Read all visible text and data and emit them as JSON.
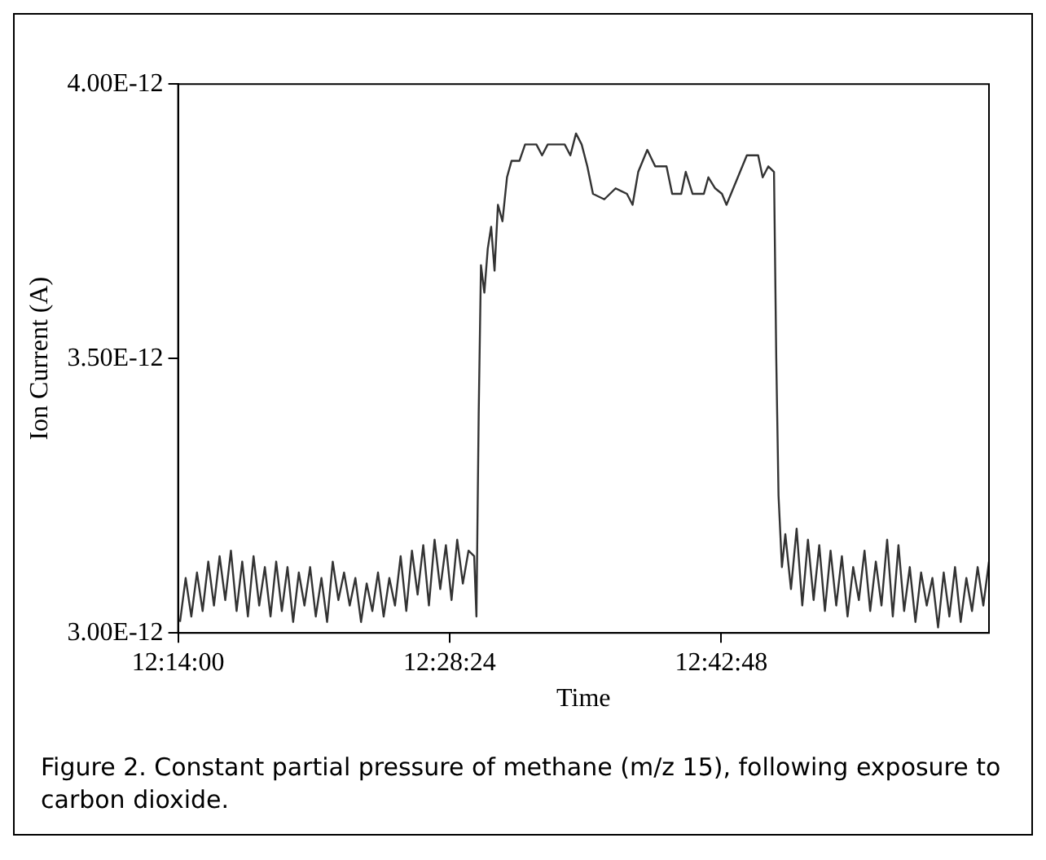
{
  "chart_data": {
    "type": "line",
    "xlabel": "Time",
    "ylabel": "Ion Current (A)",
    "annotations": [
      "Figure 2.  Constant partial pressure of methane (m/z 15), following exposure to carbon dioxide."
    ],
    "xlim": [
      12.2333,
      12.95
    ],
    "xticks": [
      {
        "value": 12.2333,
        "label": "12:14:00"
      },
      {
        "value": 12.4733,
        "label": "12:28:24"
      },
      {
        "value": 12.7133,
        "label": "12:42:48"
      }
    ],
    "ylim": [
      3e-12,
      4e-12
    ],
    "yticks": [
      {
        "value": 3e-12,
        "label": "3.00E-12"
      },
      {
        "value": 3.5e-12,
        "label": "3.50E-12"
      },
      {
        "value": 4e-12,
        "label": "4.00E-12"
      }
    ],
    "grid": false,
    "legend": false,
    "marker": "none",
    "line_style": "solid",
    "series": [
      {
        "color": "#333333",
        "x": [
          12.235,
          12.24,
          12.245,
          12.25,
          12.255,
          12.26,
          12.265,
          12.27,
          12.275,
          12.28,
          12.285,
          12.29,
          12.295,
          12.3,
          12.305,
          12.31,
          12.315,
          12.32,
          12.325,
          12.33,
          12.335,
          12.34,
          12.345,
          12.35,
          12.355,
          12.36,
          12.365,
          12.37,
          12.375,
          12.38,
          12.385,
          12.39,
          12.395,
          12.4,
          12.405,
          12.41,
          12.415,
          12.42,
          12.425,
          12.43,
          12.435,
          12.44,
          12.445,
          12.45,
          12.455,
          12.46,
          12.465,
          12.47,
          12.475,
          12.48,
          12.485,
          12.49,
          12.495,
          12.497,
          12.499,
          12.501,
          12.504,
          12.507,
          12.51,
          12.513,
          12.516,
          12.52,
          12.524,
          12.528,
          12.535,
          12.54,
          12.55,
          12.555,
          12.56,
          12.575,
          12.58,
          12.585,
          12.59,
          12.595,
          12.6,
          12.61,
          12.62,
          12.63,
          12.635,
          12.64,
          12.648,
          12.655,
          12.665,
          12.67,
          12.678,
          12.682,
          12.688,
          12.698,
          12.702,
          12.708,
          12.714,
          12.718,
          12.722,
          12.73,
          12.736,
          12.746,
          12.75,
          12.755,
          12.76,
          12.762,
          12.764,
          12.767,
          12.77,
          12.775,
          12.78,
          12.785,
          12.79,
          12.795,
          12.8,
          12.805,
          12.81,
          12.815,
          12.82,
          12.825,
          12.83,
          12.835,
          12.84,
          12.845,
          12.85,
          12.855,
          12.86,
          12.865,
          12.87,
          12.875,
          12.88,
          12.885,
          12.89,
          12.895,
          12.9,
          12.905,
          12.91,
          12.915,
          12.92,
          12.925,
          12.93,
          12.935,
          12.94,
          12.945,
          12.95
        ],
        "values": [
          3.02e-12,
          3.1e-12,
          3.03e-12,
          3.11e-12,
          3.04e-12,
          3.13e-12,
          3.05e-12,
          3.14e-12,
          3.06e-12,
          3.15e-12,
          3.04e-12,
          3.13e-12,
          3.03e-12,
          3.14e-12,
          3.05e-12,
          3.12e-12,
          3.03e-12,
          3.13e-12,
          3.04e-12,
          3.12e-12,
          3.02e-12,
          3.11e-12,
          3.05e-12,
          3.12e-12,
          3.03e-12,
          3.1e-12,
          3.02e-12,
          3.13e-12,
          3.06e-12,
          3.11e-12,
          3.05e-12,
          3.1e-12,
          3.02e-12,
          3.09e-12,
          3.04e-12,
          3.11e-12,
          3.03e-12,
          3.1e-12,
          3.05e-12,
          3.14e-12,
          3.04e-12,
          3.15e-12,
          3.07e-12,
          3.16e-12,
          3.05e-12,
          3.17e-12,
          3.08e-12,
          3.16e-12,
          3.06e-12,
          3.17e-12,
          3.09e-12,
          3.15e-12,
          3.14e-12,
          3.03e-12,
          3.4e-12,
          3.67e-12,
          3.62e-12,
          3.7e-12,
          3.74e-12,
          3.66e-12,
          3.78e-12,
          3.75e-12,
          3.83e-12,
          3.86e-12,
          3.86e-12,
          3.89e-12,
          3.89e-12,
          3.87e-12,
          3.89e-12,
          3.89e-12,
          3.87e-12,
          3.91e-12,
          3.89e-12,
          3.85e-12,
          3.8e-12,
          3.79e-12,
          3.81e-12,
          3.8e-12,
          3.78e-12,
          3.84e-12,
          3.88e-12,
          3.85e-12,
          3.85e-12,
          3.8e-12,
          3.8e-12,
          3.84e-12,
          3.8e-12,
          3.8e-12,
          3.83e-12,
          3.81e-12,
          3.8e-12,
          3.78e-12,
          3.8e-12,
          3.84e-12,
          3.87e-12,
          3.87e-12,
          3.83e-12,
          3.85e-12,
          3.84e-12,
          3.5e-12,
          3.25e-12,
          3.12e-12,
          3.18e-12,
          3.08e-12,
          3.19e-12,
          3.05e-12,
          3.17e-12,
          3.06e-12,
          3.16e-12,
          3.04e-12,
          3.15e-12,
          3.05e-12,
          3.14e-12,
          3.03e-12,
          3.12e-12,
          3.06e-12,
          3.15e-12,
          3.04e-12,
          3.13e-12,
          3.05e-12,
          3.17e-12,
          3.03e-12,
          3.16e-12,
          3.04e-12,
          3.12e-12,
          3.02e-12,
          3.11e-12,
          3.05e-12,
          3.1e-12,
          3.01e-12,
          3.11e-12,
          3.03e-12,
          3.12e-12,
          3.02e-12,
          3.1e-12,
          3.04e-12,
          3.12e-12,
          3.05e-12,
          3.13e-12
        ]
      }
    ]
  }
}
